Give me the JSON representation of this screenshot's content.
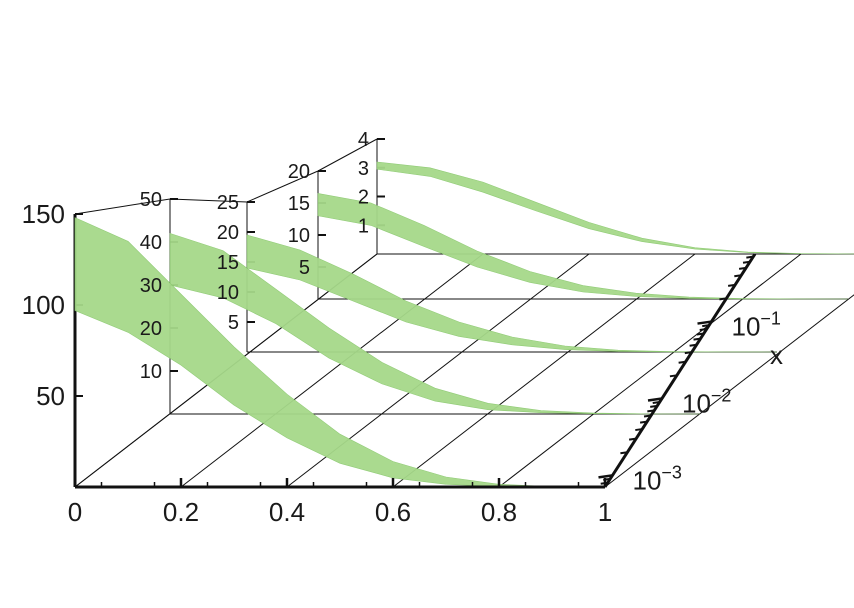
{
  "chart_data": {
    "type": "area",
    "title": "",
    "xlabel": "",
    "ylabel": "",
    "x_ticks": [
      "0",
      "0.2",
      "0.4",
      "0.6",
      "0.8",
      "1"
    ],
    "depth_axis_label": "x",
    "depth_ticks": [
      {
        "base": "10",
        "exp": "−3"
      },
      {
        "base": "10",
        "exp": "−2"
      },
      {
        "base": "10",
        "exp": "−1"
      }
    ],
    "panels": [
      {
        "depth_index": 0,
        "y_ticks": [
          "50",
          "100",
          "150"
        ],
        "ylim": [
          0,
          150
        ]
      },
      {
        "depth_index": 1,
        "y_ticks": [
          "10",
          "20",
          "30",
          "40",
          "50"
        ],
        "ylim": [
          0,
          50
        ]
      },
      {
        "depth_index": 2,
        "y_ticks": [
          "5",
          "10",
          "15",
          "20",
          "25"
        ],
        "ylim": [
          0,
          25
        ]
      },
      {
        "depth_index": 3,
        "y_ticks": [
          "5",
          "10",
          "15",
          "20"
        ],
        "ylim": [
          0,
          20
        ]
      },
      {
        "depth_index": 4,
        "y_ticks": [
          "1",
          "2",
          "3",
          "4"
        ],
        "ylim": [
          0,
          4
        ]
      }
    ],
    "series": [
      {
        "x": [
          0,
          0.1,
          0.2,
          0.3,
          0.4,
          0.5,
          0.6,
          0.7,
          0.8,
          0.9,
          1.0
        ],
        "upper": [
          148,
          135,
          106,
          77,
          51,
          29,
          14,
          5.5,
          1.5,
          0.3,
          0
        ],
        "lower": [
          97,
          85,
          67,
          45,
          27,
          13,
          5,
          1.5,
          0.3,
          0.05,
          0
        ]
      },
      {
        "x": [
          0,
          0.1,
          0.2,
          0.3,
          0.4,
          0.5,
          0.6,
          0.7,
          0.8,
          0.9,
          1.0
        ],
        "upper": [
          42,
          38,
          29,
          20,
          12,
          6,
          2.5,
          0.8,
          0.2,
          0.03,
          0
        ],
        "lower": [
          30,
          27,
          21,
          13,
          7,
          3,
          1,
          0.3,
          0.06,
          0.01,
          0
        ]
      },
      {
        "x": [
          0,
          0.1,
          0.2,
          0.3,
          0.4,
          0.5,
          0.6,
          0.7,
          0.8,
          0.9,
          1.0
        ],
        "upper": [
          19.5,
          17,
          13,
          8.5,
          5,
          2.5,
          1,
          0.3,
          0.07,
          0.01,
          0
        ],
        "lower": [
          14,
          12,
          8.5,
          5,
          2.6,
          1.2,
          0.4,
          0.1,
          0.02,
          0,
          0
        ]
      },
      {
        "x": [
          0,
          0.1,
          0.2,
          0.3,
          0.4,
          0.5,
          0.6,
          0.7,
          0.8,
          0.9,
          1.0
        ],
        "upper": [
          16.5,
          15,
          11.5,
          7.5,
          4.3,
          2.1,
          0.9,
          0.3,
          0.08,
          0.01,
          0
        ],
        "lower": [
          13,
          11.5,
          8.2,
          5,
          2.6,
          1.1,
          0.4,
          0.1,
          0.02,
          0,
          0
        ]
      },
      {
        "x": [
          0,
          0.1,
          0.2,
          0.3,
          0.4,
          0.5,
          0.6,
          0.7,
          0.8,
          0.9,
          1.0
        ],
        "upper": [
          3.2,
          3.0,
          2.5,
          1.8,
          1.1,
          0.55,
          0.22,
          0.07,
          0.015,
          0.002,
          0
        ],
        "lower": [
          2.95,
          2.7,
          2.15,
          1.5,
          0.88,
          0.43,
          0.17,
          0.05,
          0.012,
          0.002,
          0
        ]
      }
    ],
    "colors": {
      "band_fill": "#a6d98a",
      "band_edge": "#8cc970",
      "axis": "#111111"
    }
  }
}
